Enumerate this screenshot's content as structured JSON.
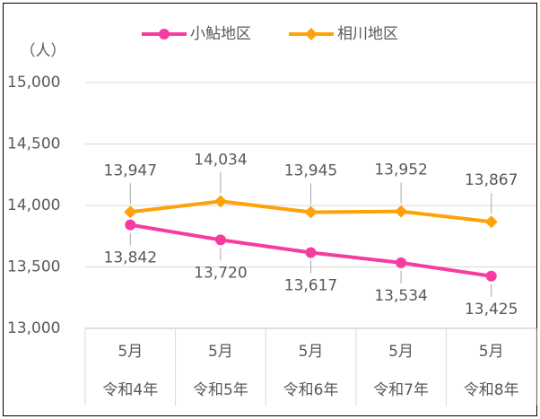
{
  "chart_data": {
    "type": "line",
    "y_axis_label": "（人）",
    "categories": [
      "5月",
      "5月",
      "5月",
      "5月",
      "5月"
    ],
    "category_groups": [
      "令和4年",
      "令和5年",
      "令和6年",
      "令和7年",
      "令和8年"
    ],
    "series": [
      {
        "name": "小鮎地区",
        "color": "#f73ca0",
        "marker": "circle",
        "values": [
          13842,
          13720,
          13617,
          13534,
          13425
        ],
        "value_labels": [
          "13,842",
          "13,720",
          "13,617",
          "13,534",
          "13,425"
        ]
      },
      {
        "name": "相川地区",
        "color": "#ffa10a",
        "marker": "diamond",
        "values": [
          13947,
          14034,
          13945,
          13952,
          13867
        ],
        "value_labels": [
          "13,947",
          "14,034",
          "13,945",
          "13,952",
          "13,867"
        ]
      }
    ],
    "ylim": [
      13000,
      15000
    ],
    "yticks": [
      {
        "value": 13000,
        "label": "13,000"
      },
      {
        "value": 13500,
        "label": "13,500"
      },
      {
        "value": 14000,
        "label": "14,000"
      },
      {
        "value": 14500,
        "label": "14,500"
      },
      {
        "value": 15000,
        "label": "15,000"
      }
    ],
    "grid": true,
    "legend": "top"
  }
}
